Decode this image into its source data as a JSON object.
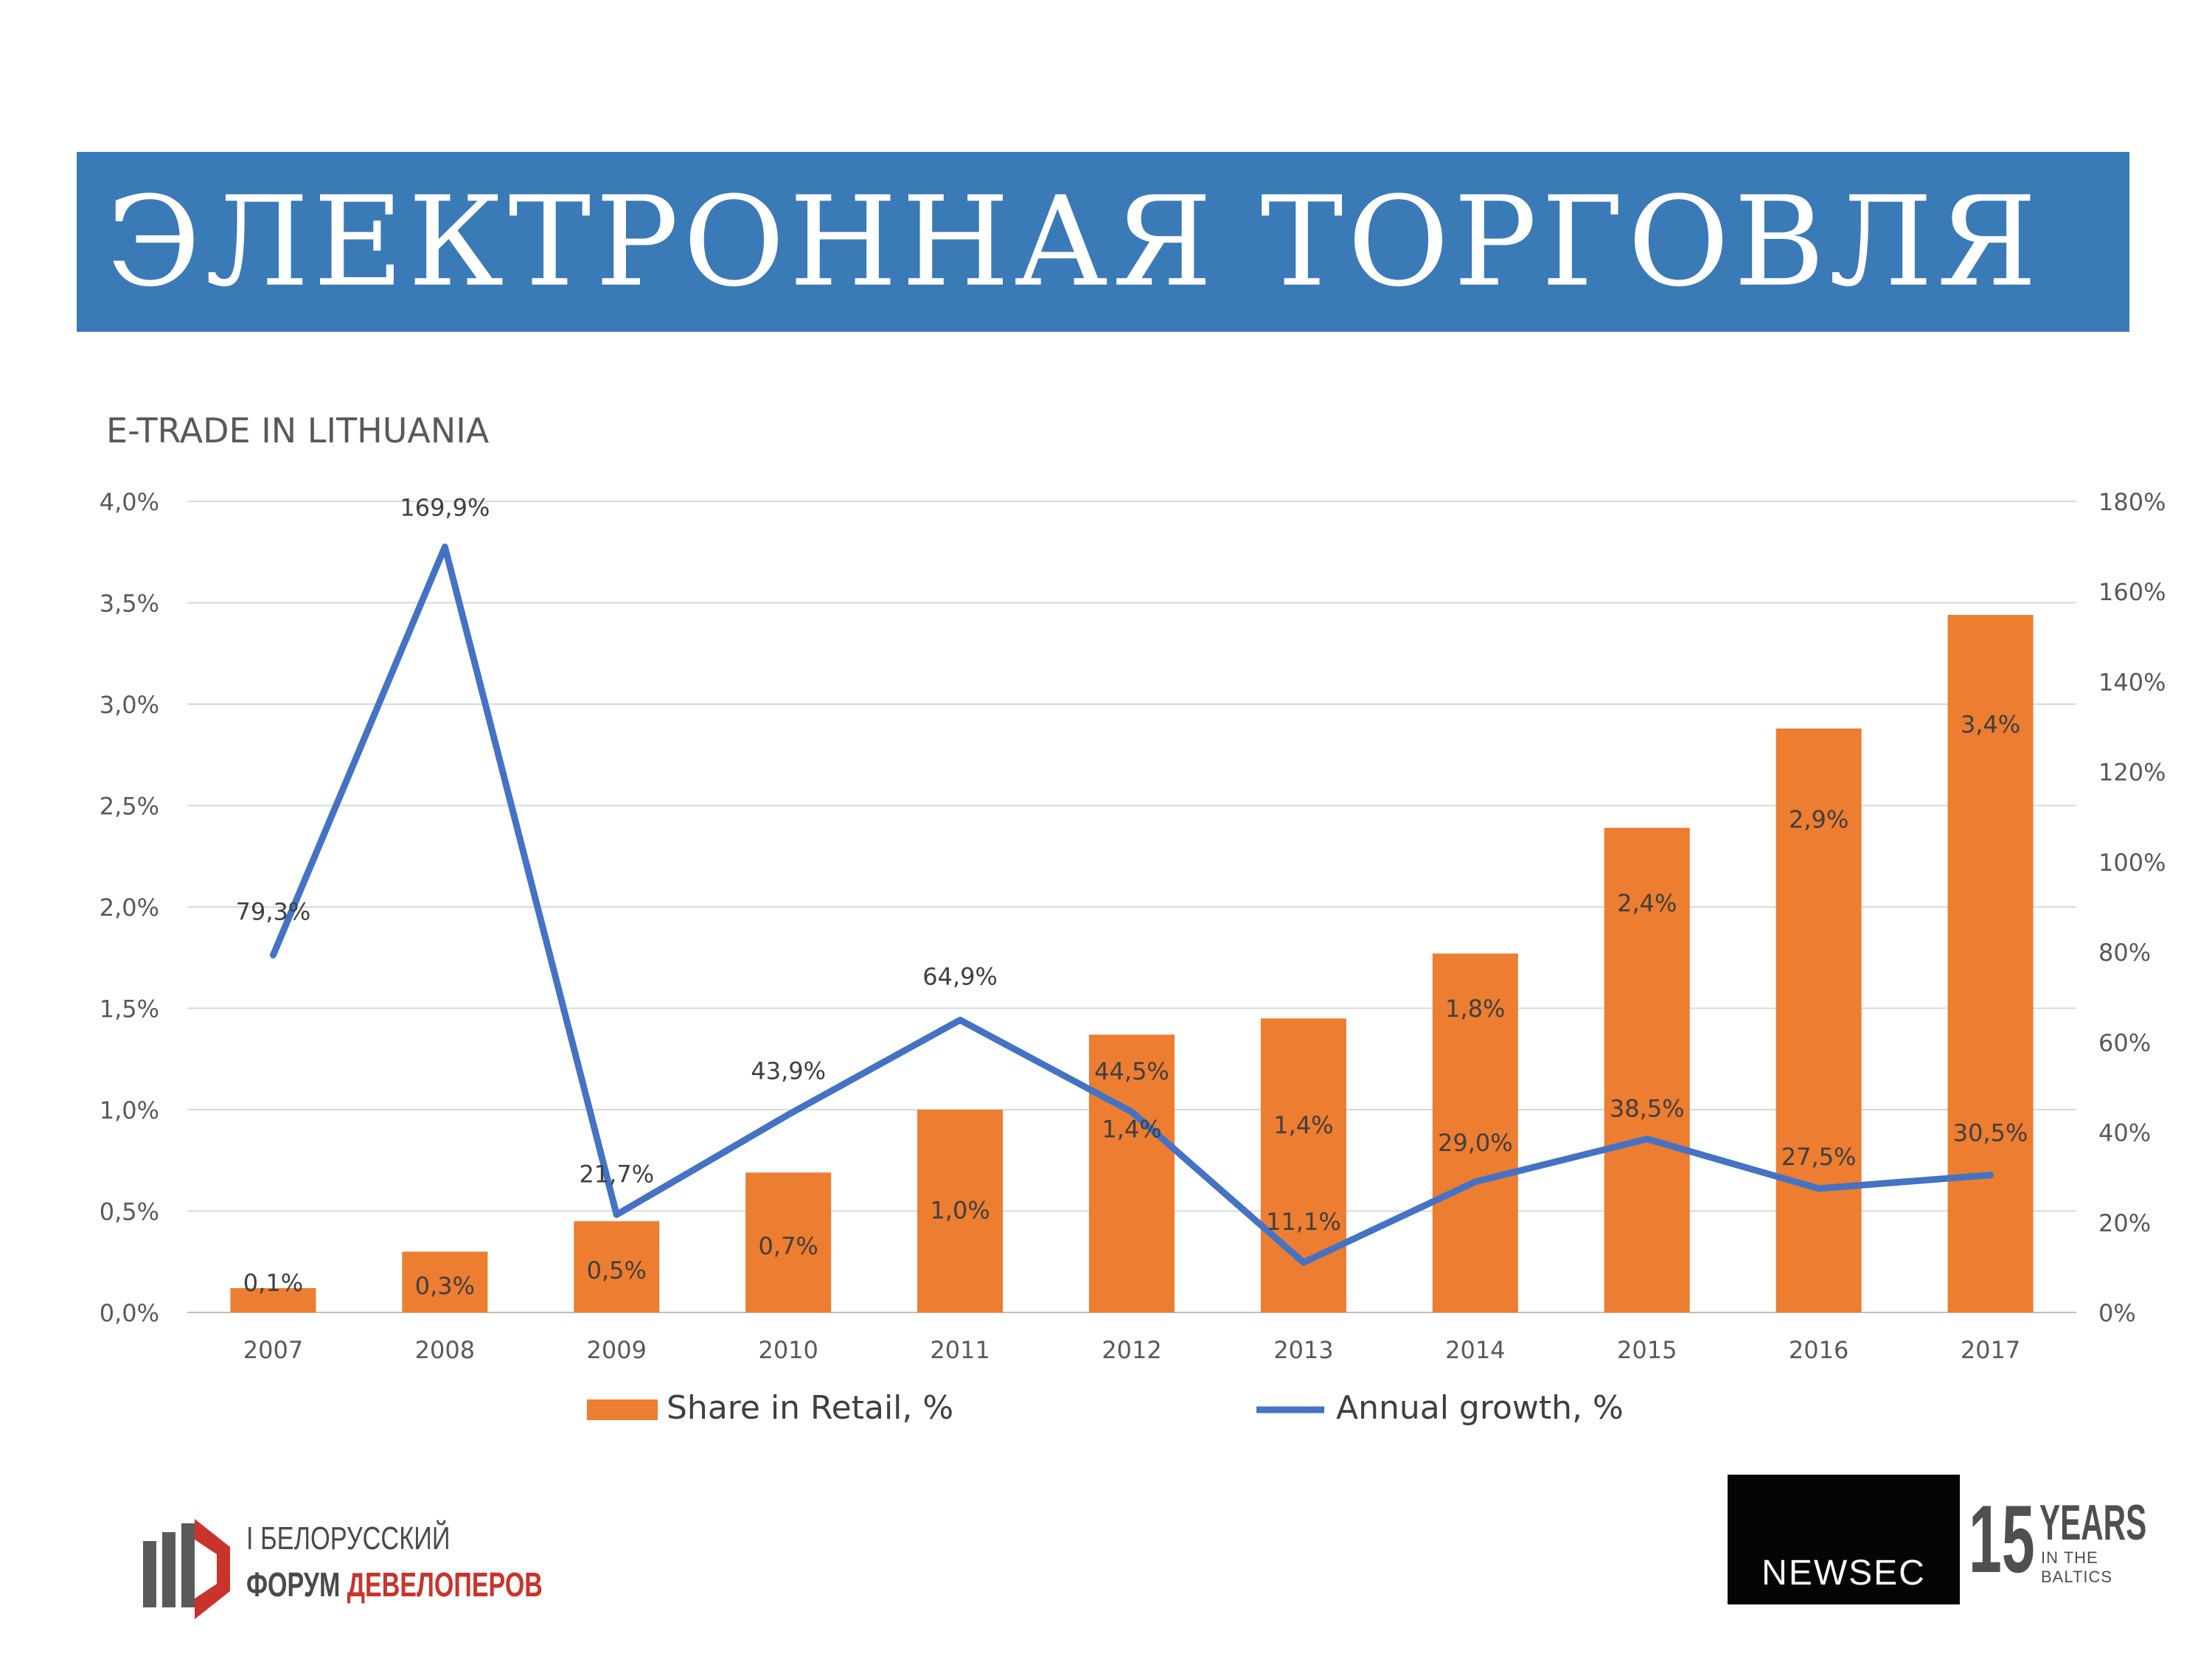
{
  "slide": {
    "title": "ЭЛЕКТРОННАЯ ТОРГОВЛЯ"
  },
  "chart_data": {
    "type": "bar",
    "title": "E-TRADE IN LITHUANIA",
    "categories": [
      "2007",
      "2008",
      "2009",
      "2010",
      "2011",
      "2012",
      "2013",
      "2014",
      "2015",
      "2016",
      "2017"
    ],
    "series": [
      {
        "name": "Share in Retail, %",
        "type": "bar",
        "axis": "left",
        "color": "#ed7d31",
        "values": [
          0.12,
          0.3,
          0.45,
          0.69,
          1.0,
          1.37,
          1.45,
          1.77,
          2.39,
          2.88,
          3.44
        ],
        "labels": [
          "0,1%",
          "0,3%",
          "0,5%",
          "0,7%",
          "1,0%",
          "1,4%",
          "1,4%",
          "1,8%",
          "2,4%",
          "2,9%",
          "3,4%"
        ]
      },
      {
        "name": "Annual growth, %",
        "type": "line",
        "axis": "right",
        "color": "#4472c4",
        "values": [
          79.3,
          169.9,
          21.7,
          43.9,
          64.9,
          44.5,
          11.1,
          29.0,
          38.5,
          27.5,
          30.5
        ],
        "labels": [
          "79,3%",
          "169,9%",
          "21,7%",
          "43,9%",
          "64,9%",
          "44,5%",
          "11,1%",
          "29,0%",
          "38,5%",
          "27,5%",
          "30,5%"
        ]
      }
    ],
    "y_left": {
      "min": 0,
      "max": 4,
      "step": 0.5,
      "ticks": [
        "0,0%",
        "0,5%",
        "1,0%",
        "1,5%",
        "2,0%",
        "2,5%",
        "3,0%",
        "3,5%",
        "4,0%"
      ]
    },
    "y_right": {
      "min": 0,
      "max": 180,
      "step": 20,
      "ticks": [
        "0%",
        "20%",
        "40%",
        "60%",
        "80%",
        "100%",
        "120%",
        "140%",
        "160%",
        "180%"
      ]
    },
    "grid": true,
    "legend": "bottom"
  },
  "logos": {
    "forum_line1": "I БЕЛОРУССКИЙ",
    "forum_line2a": "ФОРУМ ",
    "forum_line2b": "ДЕВЕЛОПЕРОВ",
    "newsec": "NEWSEC",
    "years_number": "15",
    "years_word": "YEARS",
    "years_sub1": "IN THE",
    "years_sub2": "BALTICS"
  }
}
